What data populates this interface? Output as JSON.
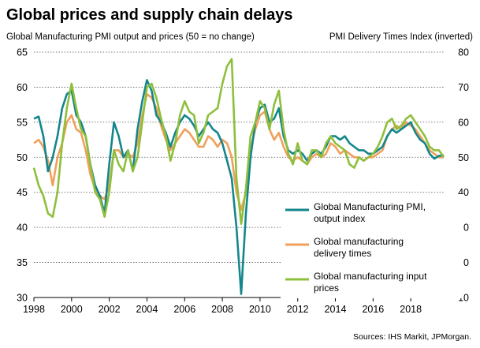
{
  "chart_data": {
    "type": "line",
    "title": "Global prices and supply chain delays",
    "subtitle_left": "Global Manufacturing PMI output and prices (50 = no change)",
    "subtitle_right": "PMI Delivery Times Index (inverted)",
    "source": "Sources: IHS Markit, JPMorgan.",
    "left_axis": {
      "min": 30,
      "max": 65,
      "ticks": [
        "30",
        "35",
        "40",
        "45",
        "50",
        "55",
        "60",
        "65"
      ]
    },
    "right_axis": {
      "min": 10,
      "max": 80,
      "inverted_note": "inverted",
      "ticks": [
        "10",
        "20",
        "30",
        "40",
        "50",
        "60",
        "70",
        "80"
      ]
    },
    "x_axis": {
      "min": 1998,
      "max": 2019.75,
      "ticks": [
        "1998",
        "2000",
        "2002",
        "2004",
        "2006",
        "2008",
        "2010",
        "2012",
        "2014",
        "2016",
        "2018"
      ]
    },
    "series": [
      {
        "name": "Global Manufacturing PMI, output index",
        "color": "#14868c",
        "axis": "left",
        "points": [
          [
            1998.0,
            55.5
          ],
          [
            1998.25,
            55.8
          ],
          [
            1998.5,
            53.0
          ],
          [
            1998.75,
            48.0
          ],
          [
            1999.0,
            50.0
          ],
          [
            1999.25,
            53.0
          ],
          [
            1999.5,
            57.0
          ],
          [
            1999.75,
            59.0
          ],
          [
            2000.0,
            59.5
          ],
          [
            2000.25,
            56.0
          ],
          [
            2000.5,
            55.0
          ],
          [
            2000.75,
            53.0
          ],
          [
            2001.0,
            49.0
          ],
          [
            2001.25,
            46.0
          ],
          [
            2001.5,
            44.5
          ],
          [
            2001.75,
            42.0
          ],
          [
            2002.0,
            49.0
          ],
          [
            2002.25,
            55.0
          ],
          [
            2002.5,
            53.0
          ],
          [
            2002.75,
            50.0
          ],
          [
            2003.0,
            51.0
          ],
          [
            2003.25,
            48.0
          ],
          [
            2003.5,
            54.0
          ],
          [
            2003.75,
            58.0
          ],
          [
            2004.0,
            61.0
          ],
          [
            2004.25,
            59.5
          ],
          [
            2004.5,
            56.0
          ],
          [
            2004.75,
            55.0
          ],
          [
            2005.0,
            53.5
          ],
          [
            2005.25,
            51.5
          ],
          [
            2005.5,
            53.5
          ],
          [
            2005.75,
            55.0
          ],
          [
            2006.0,
            56.0
          ],
          [
            2006.25,
            55.5
          ],
          [
            2006.5,
            54.5
          ],
          [
            2006.75,
            53.0
          ],
          [
            2007.0,
            54.0
          ],
          [
            2007.25,
            55.0
          ],
          [
            2007.5,
            54.0
          ],
          [
            2007.75,
            53.5
          ],
          [
            2008.0,
            52.0
          ],
          [
            2008.25,
            49.5
          ],
          [
            2008.5,
            47.0
          ],
          [
            2008.75,
            40.0
          ],
          [
            2009.0,
            30.5
          ],
          [
            2009.25,
            42.0
          ],
          [
            2009.5,
            50.0
          ],
          [
            2009.75,
            55.0
          ],
          [
            2010.0,
            57.0
          ],
          [
            2010.25,
            57.5
          ],
          [
            2010.5,
            55.0
          ],
          [
            2010.75,
            55.5
          ],
          [
            2011.0,
            57.0
          ],
          [
            2011.25,
            53.0
          ],
          [
            2011.5,
            51.0
          ],
          [
            2011.75,
            50.5
          ],
          [
            2012.0,
            51.0
          ],
          [
            2012.25,
            50.5
          ],
          [
            2012.5,
            49.5
          ],
          [
            2012.75,
            50.5
          ],
          [
            2013.0,
            51.0
          ],
          [
            2013.25,
            50.5
          ],
          [
            2013.5,
            51.5
          ],
          [
            2013.75,
            53.0
          ],
          [
            2014.0,
            53.0
          ],
          [
            2014.25,
            52.5
          ],
          [
            2014.5,
            53.0
          ],
          [
            2014.75,
            52.0
          ],
          [
            2015.0,
            51.5
          ],
          [
            2015.25,
            51.0
          ],
          [
            2015.5,
            51.0
          ],
          [
            2015.75,
            50.5
          ],
          [
            2016.0,
            50.5
          ],
          [
            2016.25,
            51.0
          ],
          [
            2016.5,
            51.5
          ],
          [
            2016.75,
            53.0
          ],
          [
            2017.0,
            54.0
          ],
          [
            2017.25,
            53.5
          ],
          [
            2017.5,
            54.0
          ],
          [
            2017.75,
            54.5
          ],
          [
            2018.0,
            55.0
          ],
          [
            2018.25,
            53.5
          ],
          [
            2018.5,
            52.5
          ],
          [
            2018.75,
            52.0
          ],
          [
            2019.0,
            50.5
          ],
          [
            2019.25,
            49.8
          ],
          [
            2019.5,
            50.2
          ],
          [
            2019.75,
            50.3
          ]
        ]
      },
      {
        "name": "Global manufacturing delivery times",
        "color": "#f0a05a",
        "axis": "right",
        "points": [
          [
            1998.0,
            54
          ],
          [
            1998.25,
            55
          ],
          [
            1998.5,
            53
          ],
          [
            1998.75,
            49
          ],
          [
            1999.0,
            42
          ],
          [
            1999.25,
            50
          ],
          [
            1999.5,
            54
          ],
          [
            1999.75,
            60
          ],
          [
            2000.0,
            62
          ],
          [
            2000.25,
            58
          ],
          [
            2000.5,
            57
          ],
          [
            2000.75,
            52
          ],
          [
            2001.0,
            45
          ],
          [
            2001.25,
            41
          ],
          [
            2001.5,
            39
          ],
          [
            2001.75,
            38
          ],
          [
            2002.0,
            42
          ],
          [
            2002.25,
            52
          ],
          [
            2002.5,
            52
          ],
          [
            2002.75,
            50
          ],
          [
            2003.0,
            51
          ],
          [
            2003.25,
            50
          ],
          [
            2003.5,
            54
          ],
          [
            2003.75,
            62
          ],
          [
            2004.0,
            68
          ],
          [
            2004.25,
            67
          ],
          [
            2004.5,
            64
          ],
          [
            2004.75,
            59
          ],
          [
            2005.0,
            55
          ],
          [
            2005.25,
            52
          ],
          [
            2005.5,
            54
          ],
          [
            2005.75,
            56
          ],
          [
            2006.0,
            58
          ],
          [
            2006.25,
            57
          ],
          [
            2006.5,
            55
          ],
          [
            2006.75,
            53
          ],
          [
            2007.0,
            53
          ],
          [
            2007.25,
            56
          ],
          [
            2007.5,
            55
          ],
          [
            2007.75,
            53
          ],
          [
            2008.0,
            55
          ],
          [
            2008.25,
            54
          ],
          [
            2008.5,
            50
          ],
          [
            2008.75,
            40
          ],
          [
            2009.0,
            35
          ],
          [
            2009.25,
            40
          ],
          [
            2009.5,
            52
          ],
          [
            2009.75,
            58
          ],
          [
            2010.0,
            62
          ],
          [
            2010.25,
            63
          ],
          [
            2010.5,
            58
          ],
          [
            2010.75,
            55
          ],
          [
            2011.0,
            57
          ],
          [
            2011.25,
            53
          ],
          [
            2011.5,
            50
          ],
          [
            2011.75,
            49
          ],
          [
            2012.0,
            50
          ],
          [
            2012.25,
            49
          ],
          [
            2012.5,
            48
          ],
          [
            2012.75,
            50
          ],
          [
            2013.0,
            51
          ],
          [
            2013.25,
            50
          ],
          [
            2013.5,
            51
          ],
          [
            2013.75,
            54
          ],
          [
            2014.0,
            53
          ],
          [
            2014.25,
            51
          ],
          [
            2014.5,
            52
          ],
          [
            2014.75,
            51
          ],
          [
            2015.0,
            50
          ],
          [
            2015.25,
            50
          ],
          [
            2015.5,
            49
          ],
          [
            2015.75,
            50
          ],
          [
            2016.0,
            50
          ],
          [
            2016.25,
            51
          ],
          [
            2016.5,
            52
          ],
          [
            2016.75,
            56
          ],
          [
            2017.0,
            58
          ],
          [
            2017.25,
            59
          ],
          [
            2017.5,
            58
          ],
          [
            2017.75,
            60
          ],
          [
            2018.0,
            59
          ],
          [
            2018.25,
            58
          ],
          [
            2018.5,
            56
          ],
          [
            2018.75,
            54
          ],
          [
            2019.0,
            52
          ],
          [
            2019.25,
            51
          ],
          [
            2019.5,
            50
          ],
          [
            2019.75,
            50
          ]
        ]
      },
      {
        "name": "Global manufacturing input prices",
        "color": "#8ebf3c",
        "axis": "left",
        "points": [
          [
            1998.0,
            48.5
          ],
          [
            1998.25,
            46.0
          ],
          [
            1998.5,
            44.5
          ],
          [
            1998.75,
            42.0
          ],
          [
            1999.0,
            41.5
          ],
          [
            1999.25,
            45.0
          ],
          [
            1999.5,
            52.0
          ],
          [
            1999.75,
            57.0
          ],
          [
            2000.0,
            60.5
          ],
          [
            2000.25,
            57.0
          ],
          [
            2000.5,
            54.0
          ],
          [
            2000.75,
            53.0
          ],
          [
            2001.0,
            49.0
          ],
          [
            2001.25,
            45.0
          ],
          [
            2001.5,
            44.0
          ],
          [
            2001.75,
            41.5
          ],
          [
            2002.0,
            45.0
          ],
          [
            2002.25,
            51.0
          ],
          [
            2002.5,
            49.0
          ],
          [
            2002.75,
            48.0
          ],
          [
            2003.0,
            51.0
          ],
          [
            2003.25,
            48.0
          ],
          [
            2003.5,
            50.0
          ],
          [
            2003.75,
            55.0
          ],
          [
            2004.0,
            60.0
          ],
          [
            2004.25,
            60.5
          ],
          [
            2004.5,
            58.5
          ],
          [
            2004.75,
            55.5
          ],
          [
            2005.0,
            53.0
          ],
          [
            2005.25,
            49.5
          ],
          [
            2005.5,
            52.0
          ],
          [
            2005.75,
            56.0
          ],
          [
            2006.0,
            58.0
          ],
          [
            2006.25,
            56.5
          ],
          [
            2006.5,
            56.0
          ],
          [
            2006.75,
            52.0
          ],
          [
            2007.0,
            53.5
          ],
          [
            2007.25,
            56.0
          ],
          [
            2007.5,
            56.5
          ],
          [
            2007.75,
            57.0
          ],
          [
            2008.0,
            60.5
          ],
          [
            2008.25,
            63.0
          ],
          [
            2008.5,
            64.0
          ],
          [
            2008.75,
            47.0
          ],
          [
            2009.0,
            40.5
          ],
          [
            2009.25,
            45.5
          ],
          [
            2009.5,
            53.0
          ],
          [
            2009.75,
            55.0
          ],
          [
            2010.0,
            58.0
          ],
          [
            2010.25,
            57.0
          ],
          [
            2010.5,
            54.0
          ],
          [
            2010.75,
            57.5
          ],
          [
            2011.0,
            59.5
          ],
          [
            2011.25,
            54.0
          ],
          [
            2011.5,
            50.5
          ],
          [
            2011.75,
            49.0
          ],
          [
            2012.0,
            52.0
          ],
          [
            2012.25,
            49.5
          ],
          [
            2012.5,
            49.0
          ],
          [
            2012.75,
            51.0
          ],
          [
            2013.0,
            51.0
          ],
          [
            2013.25,
            50.0
          ],
          [
            2013.5,
            52.0
          ],
          [
            2013.75,
            53.0
          ],
          [
            2014.0,
            52.0
          ],
          [
            2014.25,
            51.5
          ],
          [
            2014.5,
            51.0
          ],
          [
            2014.75,
            49.0
          ],
          [
            2015.0,
            48.5
          ],
          [
            2015.25,
            50.0
          ],
          [
            2015.5,
            49.5
          ],
          [
            2015.75,
            50.0
          ],
          [
            2016.0,
            50.5
          ],
          [
            2016.25,
            51.5
          ],
          [
            2016.5,
            53.0
          ],
          [
            2016.75,
            55.0
          ],
          [
            2017.0,
            55.5
          ],
          [
            2017.25,
            54.0
          ],
          [
            2017.5,
            54.5
          ],
          [
            2017.75,
            55.5
          ],
          [
            2018.0,
            56.0
          ],
          [
            2018.25,
            55.0
          ],
          [
            2018.5,
            54.0
          ],
          [
            2018.75,
            53.0
          ],
          [
            2019.0,
            51.5
          ],
          [
            2019.25,
            51.0
          ],
          [
            2019.5,
            51.0
          ],
          [
            2019.75,
            50.0
          ]
        ]
      }
    ],
    "legend": {
      "placement": "bottom-right",
      "entries": [
        {
          "lines": [
            "Global Manufacturing PMI,",
            "output index"
          ]
        },
        {
          "lines": [
            "Global manufacturing",
            "delivery times"
          ]
        },
        {
          "lines": [
            "Global manufacturing input",
            "prices"
          ]
        }
      ]
    },
    "grid": "horizontal-dotted"
  }
}
